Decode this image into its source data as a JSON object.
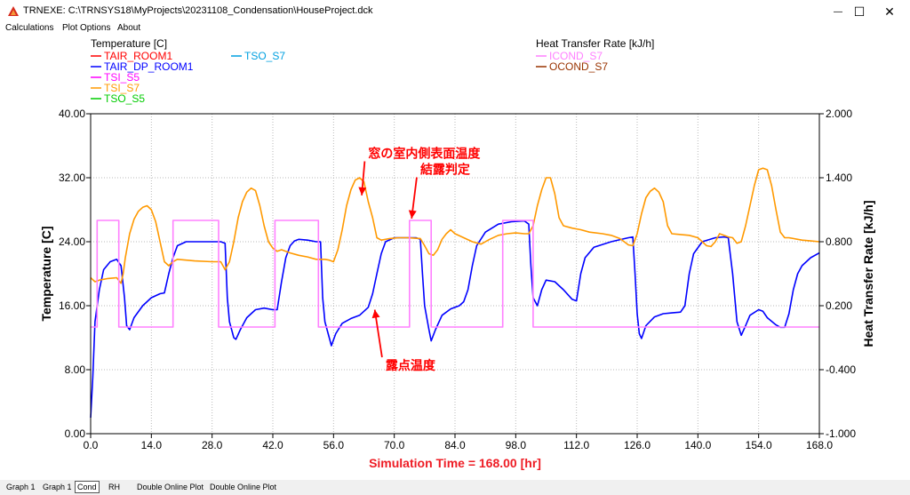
{
  "window": {
    "title": "TRNEXE: C:\\TRNSYS18\\MyProjects\\20231108_Condensation\\HouseProject.dck",
    "minimize_glyph": "—",
    "maximize_glyph": "☐",
    "close_glyph": "✕"
  },
  "menu": {
    "items": [
      "Calculations",
      "Plot Options",
      "About"
    ]
  },
  "tabs": {
    "items": [
      "Graph 1",
      "Graph 1",
      "Cond",
      "RH",
      "Double Online Plot",
      "Double Online Plot"
    ],
    "active_index": 2
  },
  "colors": {
    "TAIR_ROOM1": "#ff0000",
    "TAIR_DP_ROOM1": "#0000ff",
    "TSI_S5": "#ff00ff",
    "TSI_S7": "#ff9900",
    "TSO_S5": "#00cc00",
    "TSO_S7": "#00a0e0",
    "ICOND_S7": "#ff80ff",
    "OCOND_S7": "#993300",
    "annotation": "#ff0000"
  },
  "chart_data": {
    "type": "line",
    "left_legend_title": "Temperature [C]",
    "right_legend_title": "Heat Transfer Rate [kJ/h]",
    "xlabel": "Simulation Time = 168.00 [hr]",
    "ylabel": "Temperature [C]",
    "y2label": "Heat Transfer Rate [kJ/h]",
    "xlim": [
      0,
      168
    ],
    "ylim": [
      0,
      40
    ],
    "y2lim": [
      -1,
      2
    ],
    "x_ticks": [
      "0.0",
      "14.0",
      "28.0",
      "42.0",
      "56.0",
      "70.0",
      "84.0",
      "98.0",
      "112.0",
      "126.0",
      "140.0",
      "154.0",
      "168.0"
    ],
    "y_ticks": [
      "0.00",
      "8.00",
      "16.00",
      "24.00",
      "32.00",
      "40.00"
    ],
    "y2_ticks": [
      "-1.000",
      "-0.400",
      "0.200",
      "0.800",
      "1.400",
      "2.000"
    ],
    "legend_left": [
      "TAIR_ROOM1",
      "TAIR_DP_ROOM1",
      "TSI_S5",
      "TSI_S7",
      "TSO_S5",
      "TSO_S7"
    ],
    "legend_right": [
      "ICOND_S7",
      "OCOND_S7"
    ],
    "series": [
      {
        "name": "TAIR_DP_ROOM1",
        "axis": "left",
        "points": [
          [
            0,
            2
          ],
          [
            0.5,
            7
          ],
          [
            1,
            14
          ],
          [
            2,
            18
          ],
          [
            3,
            20.5
          ],
          [
            4.5,
            21.5
          ],
          [
            6,
            21.8
          ],
          [
            7,
            21
          ],
          [
            7.8,
            17
          ],
          [
            8.3,
            13.5
          ],
          [
            9,
            13
          ],
          [
            10,
            14.5
          ],
          [
            12,
            16
          ],
          [
            14,
            17
          ],
          [
            16,
            17.5
          ],
          [
            17,
            17.6
          ],
          [
            18,
            20
          ],
          [
            19,
            22
          ],
          [
            20,
            23.5
          ],
          [
            22,
            24
          ],
          [
            24,
            24
          ],
          [
            28,
            24
          ],
          [
            30,
            24
          ],
          [
            31,
            23.8
          ],
          [
            31.5,
            17
          ],
          [
            32,
            14
          ],
          [
            33,
            12
          ],
          [
            33.5,
            11.8
          ],
          [
            34.5,
            13
          ],
          [
            36,
            14.5
          ],
          [
            38,
            15.5
          ],
          [
            40,
            15.7
          ],
          [
            42,
            15.5
          ],
          [
            43,
            15.5
          ],
          [
            44,
            19
          ],
          [
            45,
            22
          ],
          [
            46,
            23.5
          ],
          [
            47,
            24.1
          ],
          [
            48,
            24.3
          ],
          [
            50,
            24.2
          ],
          [
            52,
            24
          ],
          [
            53,
            24
          ],
          [
            53.5,
            17
          ],
          [
            54,
            14
          ],
          [
            55,
            12
          ],
          [
            55.5,
            11
          ],
          [
            56.5,
            12.5
          ],
          [
            58,
            13.8
          ],
          [
            60,
            14.4
          ],
          [
            62,
            14.8
          ],
          [
            63,
            15.3
          ],
          [
            64,
            15.8
          ],
          [
            65,
            17.5
          ],
          [
            66,
            20
          ],
          [
            67,
            22.5
          ],
          [
            68,
            24
          ],
          [
            70,
            24.5
          ],
          [
            72,
            24.5
          ],
          [
            75,
            24.5
          ],
          [
            76,
            24.3
          ],
          [
            76.5,
            20
          ],
          [
            77,
            16
          ],
          [
            78,
            13
          ],
          [
            78.5,
            11.6
          ],
          [
            79.5,
            13
          ],
          [
            81,
            14.8
          ],
          [
            83,
            15.6
          ],
          [
            85,
            16
          ],
          [
            86,
            16.5
          ],
          [
            87,
            18
          ],
          [
            88,
            21
          ],
          [
            89,
            23.5
          ],
          [
            91,
            25.2
          ],
          [
            94,
            26.2
          ],
          [
            97,
            26.5
          ],
          [
            100,
            26.6
          ],
          [
            101,
            26.2
          ],
          [
            101.5,
            21
          ],
          [
            102,
            17
          ],
          [
            103,
            16
          ],
          [
            104,
            18
          ],
          [
            105,
            19.2
          ],
          [
            107,
            19
          ],
          [
            109,
            18
          ],
          [
            111,
            16.8
          ],
          [
            112,
            16.6
          ],
          [
            113,
            20
          ],
          [
            114,
            22
          ],
          [
            116,
            23.3
          ],
          [
            120,
            24
          ],
          [
            124,
            24.5
          ],
          [
            125,
            24.6
          ],
          [
            125.5,
            20
          ],
          [
            126,
            15
          ],
          [
            126.5,
            12.5
          ],
          [
            127,
            11.9
          ],
          [
            128,
            13.5
          ],
          [
            130,
            14.6
          ],
          [
            132,
            15
          ],
          [
            134,
            15.1
          ],
          [
            136,
            15.2
          ],
          [
            137,
            16
          ],
          [
            138,
            20
          ],
          [
            139,
            22.5
          ],
          [
            141,
            24
          ],
          [
            144,
            24.5
          ],
          [
            146,
            24.6
          ],
          [
            147,
            24.5
          ],
          [
            148,
            20
          ],
          [
            149,
            14
          ],
          [
            150,
            12.3
          ],
          [
            151,
            13.5
          ],
          [
            152,
            14.8
          ],
          [
            154,
            15.5
          ],
          [
            155,
            15.3
          ],
          [
            156,
            14.5
          ],
          [
            158,
            13.6
          ],
          [
            159,
            13.3
          ],
          [
            160,
            13.3
          ],
          [
            161,
            15
          ],
          [
            162,
            18
          ],
          [
            163,
            20
          ],
          [
            164,
            21
          ],
          [
            166,
            22
          ],
          [
            168,
            22.6
          ]
        ]
      },
      {
        "name": "TSI_S7",
        "axis": "left",
        "points": [
          [
            0,
            19.5
          ],
          [
            1,
            19
          ],
          [
            2,
            19.2
          ],
          [
            4,
            19.4
          ],
          [
            6,
            19.5
          ],
          [
            7,
            18.8
          ],
          [
            7.5,
            20
          ],
          [
            8,
            22
          ],
          [
            9,
            25
          ],
          [
            10,
            26.8
          ],
          [
            11,
            27.8
          ],
          [
            12,
            28.3
          ],
          [
            13,
            28.5
          ],
          [
            14,
            28
          ],
          [
            15,
            26.5
          ],
          [
            16,
            24
          ],
          [
            17,
            21.5
          ],
          [
            18,
            21
          ],
          [
            19,
            21.5
          ],
          [
            20,
            21.8
          ],
          [
            22,
            21.7
          ],
          [
            24,
            21.6
          ],
          [
            28,
            21.5
          ],
          [
            30,
            21.5
          ],
          [
            31,
            20.5
          ],
          [
            32,
            21.5
          ],
          [
            33,
            24
          ],
          [
            34,
            27
          ],
          [
            35,
            29
          ],
          [
            36,
            30.2
          ],
          [
            37,
            30.7
          ],
          [
            38,
            30.4
          ],
          [
            39,
            28.5
          ],
          [
            40,
            26
          ],
          [
            41,
            24
          ],
          [
            42,
            23.2
          ],
          [
            43,
            22.8
          ],
          [
            44,
            23
          ],
          [
            46,
            22.6
          ],
          [
            48,
            22.3
          ],
          [
            50,
            22.1
          ],
          [
            52,
            21.8
          ],
          [
            54,
            21.8
          ],
          [
            55,
            21.7
          ],
          [
            56,
            21.5
          ],
          [
            57,
            23
          ],
          [
            58,
            25.5
          ],
          [
            59,
            28.5
          ],
          [
            60,
            30.5
          ],
          [
            61,
            31.7
          ],
          [
            62,
            32
          ],
          [
            63,
            31.5
          ],
          [
            64,
            29
          ],
          [
            65,
            27
          ],
          [
            66,
            24.5
          ],
          [
            67,
            24.2
          ],
          [
            69,
            24.4
          ],
          [
            71,
            24.5
          ],
          [
            73,
            24.5
          ],
          [
            76,
            24.4
          ],
          [
            77,
            23.5
          ],
          [
            78,
            22.5
          ],
          [
            79,
            22.3
          ],
          [
            80,
            23
          ],
          [
            81,
            24.3
          ],
          [
            82,
            25
          ],
          [
            83,
            25.5
          ],
          [
            84,
            25
          ],
          [
            86,
            24.5
          ],
          [
            88,
            24
          ],
          [
            90,
            23.7
          ],
          [
            92,
            24.3
          ],
          [
            94,
            24.8
          ],
          [
            96,
            25
          ],
          [
            98,
            25.1
          ],
          [
            100,
            25
          ],
          [
            101,
            25
          ],
          [
            102,
            26
          ],
          [
            103,
            28.5
          ],
          [
            104,
            30.5
          ],
          [
            105,
            32
          ],
          [
            106,
            32
          ],
          [
            107,
            30
          ],
          [
            108,
            27
          ],
          [
            109,
            26
          ],
          [
            111,
            25.7
          ],
          [
            113,
            25.5
          ],
          [
            115,
            25.2
          ],
          [
            118,
            25
          ],
          [
            120,
            24.8
          ],
          [
            122,
            24.4
          ],
          [
            123,
            24
          ],
          [
            124,
            23.6
          ],
          [
            125,
            23.5
          ],
          [
            126,
            25
          ],
          [
            127,
            27.5
          ],
          [
            128,
            29.5
          ],
          [
            129,
            30.3
          ],
          [
            130,
            30.7
          ],
          [
            131,
            30.2
          ],
          [
            132,
            29
          ],
          [
            133,
            26
          ],
          [
            134,
            25
          ],
          [
            136,
            24.9
          ],
          [
            138,
            24.8
          ],
          [
            140,
            24.5
          ],
          [
            141,
            24
          ],
          [
            142,
            23.5
          ],
          [
            143,
            23.4
          ],
          [
            144,
            24
          ],
          [
            145,
            25
          ],
          [
            146,
            24.8
          ],
          [
            147,
            24.6
          ],
          [
            148,
            24.5
          ],
          [
            149,
            23.8
          ],
          [
            150,
            24
          ],
          [
            151,
            26
          ],
          [
            152,
            28.5
          ],
          [
            153,
            31
          ],
          [
            154,
            33
          ],
          [
            155,
            33.2
          ],
          [
            156,
            33
          ],
          [
            157,
            31
          ],
          [
            158,
            28
          ],
          [
            159,
            25.2
          ],
          [
            160,
            24.5
          ],
          [
            161,
            24.5
          ],
          [
            162,
            24.4
          ],
          [
            163,
            24.3
          ],
          [
            164,
            24.2
          ],
          [
            166,
            24.1
          ],
          [
            168,
            24
          ]
        ]
      },
      {
        "name": "ICOND_S7",
        "axis": "right",
        "points": [
          [
            0,
            0
          ],
          [
            1.5,
            0
          ],
          [
            1.5,
            1
          ],
          [
            6.5,
            1
          ],
          [
            6.5,
            0
          ],
          [
            19,
            0
          ],
          [
            19,
            1
          ],
          [
            29.5,
            1
          ],
          [
            29.5,
            0
          ],
          [
            42.5,
            0
          ],
          [
            42.5,
            1
          ],
          [
            52.5,
            1
          ],
          [
            52.5,
            0
          ],
          [
            73.5,
            0
          ],
          [
            73.5,
            1
          ],
          [
            78.5,
            1
          ],
          [
            78.5,
            0
          ],
          [
            95,
            0
          ],
          [
            95,
            1
          ],
          [
            102,
            1
          ],
          [
            102,
            0
          ],
          [
            168,
            0
          ]
        ]
      }
    ],
    "annotations": [
      {
        "text": "窓の室内側表面温度",
        "x": 64,
        "y": 34.5,
        "target": [
          62.5,
          29.8
        ]
      },
      {
        "text": "結露判定",
        "x": 76,
        "y": 32.5,
        "target": [
          74,
          26.9
        ]
      },
      {
        "text": "露点温度",
        "x": 68,
        "y": 8.0,
        "target": [
          65.5,
          15.5
        ]
      }
    ]
  }
}
